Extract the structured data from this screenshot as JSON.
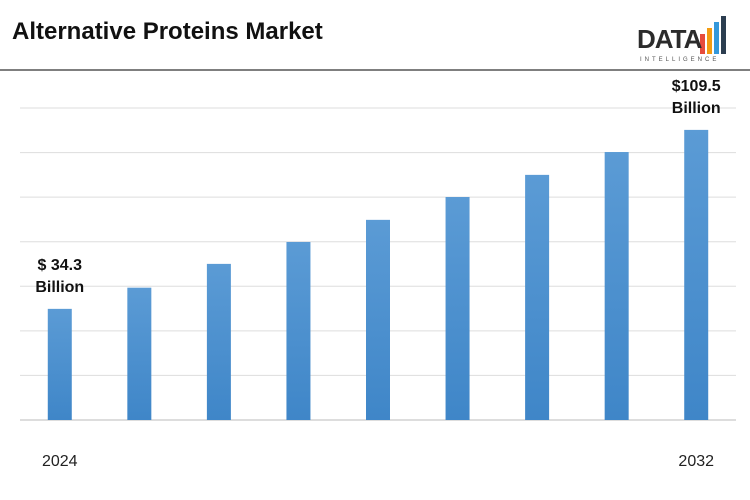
{
  "logo": {
    "name": "DATA",
    "tagline": "INTELLIGENCE"
  },
  "chart_data": {
    "type": "bar",
    "title": "Alternative Proteins Market",
    "categories": [
      "2024",
      null,
      null,
      null,
      null,
      null,
      null,
      null,
      "2032"
    ],
    "values": [
      34.3,
      43.2,
      53.2,
      62.4,
      71.7,
      81.3,
      90.6,
      100.2,
      109.5
    ],
    "value_labels": [
      "$ 34.3 Billion",
      null,
      null,
      null,
      null,
      null,
      null,
      null,
      "$109.5 Billion"
    ],
    "color": "#5b9bd5",
    "ylim": [
      -12.4,
      118.7
    ],
    "grid": true
  }
}
